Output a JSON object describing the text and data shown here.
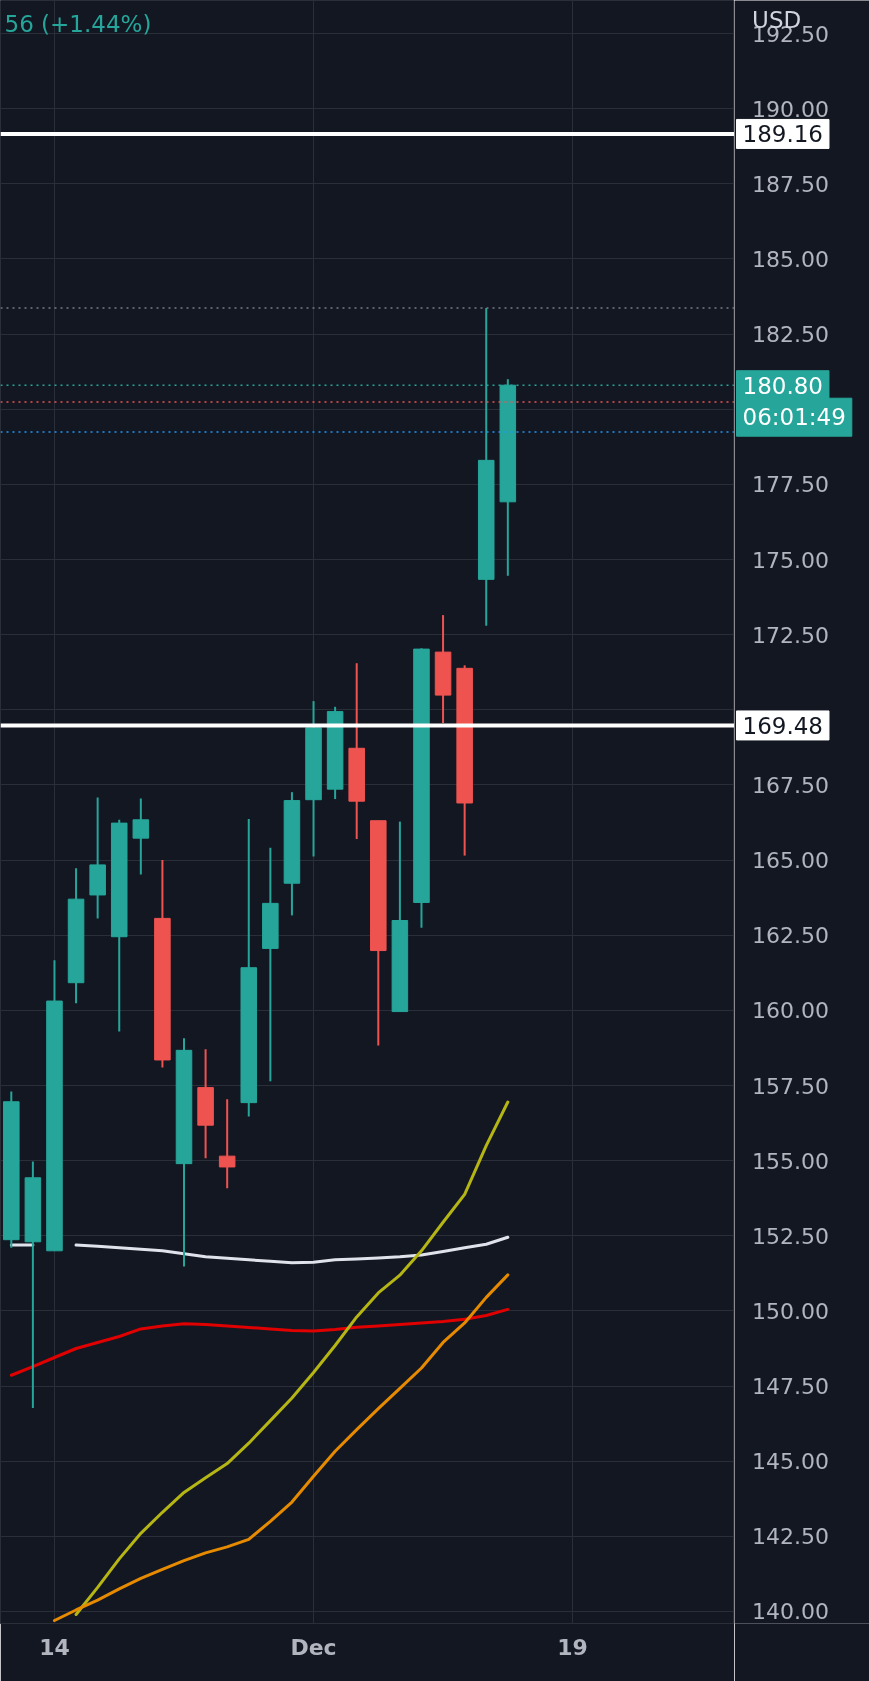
{
  "chart_data": {
    "type": "candlestick",
    "categories": [
      null,
      null,
      "14",
      null,
      null,
      null,
      null,
      null,
      null,
      null,
      null,
      null,
      null,
      null,
      "Dec",
      null,
      null,
      null,
      null,
      null,
      null,
      null,
      null,
      null,
      null,
      null,
      "19",
      null,
      null,
      null,
      null,
      null,
      null,
      null
    ],
    "ohlc": [
      [
        152.37,
        157.3,
        152.1,
        156.96
      ],
      [
        152.3,
        154.97,
        146.77,
        154.43
      ],
      [
        152.0,
        161.67,
        152.0,
        160.31
      ],
      [
        160.92,
        164.73,
        160.24,
        163.7
      ],
      [
        163.84,
        167.08,
        163.06,
        164.84
      ],
      [
        162.45,
        166.34,
        159.3,
        166.23
      ],
      [
        165.73,
        167.05,
        164.52,
        166.34
      ],
      [
        163.06,
        165.0,
        158.1,
        158.35
      ],
      [
        154.9,
        159.07,
        151.48,
        158.67
      ],
      [
        157.43,
        158.71,
        155.08,
        156.18
      ],
      [
        155.15,
        157.04,
        154.08,
        154.79
      ],
      [
        156.93,
        166.37,
        156.47,
        161.42
      ],
      [
        162.06,
        165.41,
        157.64,
        163.56
      ],
      [
        164.23,
        167.26,
        163.16,
        166.98
      ],
      [
        167.01,
        170.29,
        165.12,
        169.4
      ],
      [
        167.36,
        170.1,
        167.03,
        169.94
      ],
      [
        168.72,
        171.55,
        165.7,
        166.96
      ],
      [
        166.31,
        166.31,
        158.83,
        161.99
      ],
      [
        159.96,
        166.28,
        159.96,
        162.99
      ],
      [
        163.59,
        172.05,
        162.75,
        172.02
      ],
      [
        171.92,
        173.15,
        169.56,
        170.49
      ],
      [
        171.38,
        171.48,
        165.15,
        166.9
      ],
      [
        174.34,
        183.37,
        172.8,
        178.3
      ],
      [
        176.92,
        181.0,
        174.46,
        180.8
      ],
      null,
      null,
      null,
      null,
      null,
      null,
      null,
      null,
      null,
      null
    ],
    "colors": [
      "#26a69a",
      "#26a69a",
      "#26a69a",
      "#26a69a",
      "#26a69a",
      "#26a69a",
      "#26a69a",
      "#ef5350",
      "#26a69a",
      "#ef5350",
      "#ef5350",
      "#26a69a",
      "#26a69a",
      "#26a69a",
      "#26a69a",
      "#26a69a",
      "#ef5350",
      "#ef5350",
      "#26a69a",
      "#26a69a",
      "#ef5350",
      "#ef5350",
      "#26a69a",
      "#26a69a",
      null,
      null,
      null,
      null,
      null,
      null,
      null,
      null,
      null,
      null
    ],
    "series": [
      {
        "type": "line",
        "color": "#e0e3eb",
        "values": [
          152.19,
          152.19,
          null,
          152.19,
          152.15,
          152.1,
          152.05,
          152.0,
          151.9,
          151.8,
          151.75,
          151.7,
          151.65,
          151.6,
          151.62,
          151.7,
          151.73,
          151.76,
          151.8,
          151.86,
          151.98,
          152.1,
          152.22,
          152.45,
          null,
          null,
          null,
          null,
          null,
          null,
          null,
          null,
          null,
          null
        ]
      },
      {
        "type": "line",
        "color": "#e00000",
        "values": [
          147.86,
          148.15,
          148.45,
          148.75,
          148.95,
          149.15,
          149.4,
          149.5,
          149.57,
          149.55,
          149.5,
          149.45,
          149.4,
          149.35,
          149.33,
          149.38,
          149.46,
          149.5,
          149.55,
          149.6,
          149.65,
          149.72,
          149.85,
          150.05,
          null,
          null,
          null,
          null,
          null,
          null,
          null,
          null,
          null,
          null
        ]
      },
      {
        "type": "line",
        "color": "#b5b514",
        "values": [
          null,
          null,
          null,
          139.9,
          140.8,
          141.75,
          142.6,
          143.3,
          143.96,
          144.45,
          144.92,
          145.6,
          146.35,
          147.1,
          147.95,
          148.85,
          149.8,
          150.6,
          151.19,
          152.0,
          152.95,
          153.88,
          155.5,
          156.95,
          null,
          null,
          null,
          null,
          null,
          null,
          null,
          null,
          null,
          null
        ]
      },
      {
        "type": "line",
        "color": "#e68a00",
        "values": [
          null,
          null,
          139.7,
          140.05,
          140.38,
          140.75,
          141.1,
          141.4,
          141.69,
          141.95,
          142.15,
          142.4,
          143.0,
          143.64,
          144.5,
          145.33,
          146.05,
          146.75,
          147.42,
          148.1,
          148.95,
          149.6,
          150.45,
          151.2,
          null,
          null,
          null,
          null,
          null,
          null,
          null,
          null,
          null,
          null
        ]
      }
    ],
    "ylim": [
      139.6,
      193.6
    ],
    "yticks": [
      {
        "value": 140,
        "label": "140.00"
      },
      {
        "value": 142.5,
        "label": "142.50"
      },
      {
        "value": 145,
        "label": "145.00"
      },
      {
        "value": 147.5,
        "label": "147.50"
      },
      {
        "value": 150,
        "label": "150.00"
      },
      {
        "value": 152.5,
        "label": "152.50"
      },
      {
        "value": 155,
        "label": "155.00"
      },
      {
        "value": 157.5,
        "label": "157.50"
      },
      {
        "value": 160,
        "label": "160.00"
      },
      {
        "value": 162.5,
        "label": "162.50"
      },
      {
        "value": 165,
        "label": "165.00"
      },
      {
        "value": 167.5,
        "label": "167.50"
      },
      {
        "value": 170,
        "label": null
      },
      {
        "value": 172.5,
        "label": "172.50"
      },
      {
        "value": 175,
        "label": "175.00"
      },
      {
        "value": 177.5,
        "label": "177.50"
      },
      {
        "value": 180,
        "label": null
      },
      {
        "value": 182.5,
        "label": "182.50"
      },
      {
        "value": 185,
        "label": "185.00"
      },
      {
        "value": 187.5,
        "label": "187.50"
      },
      {
        "value": 190,
        "label": "190.00"
      },
      {
        "value": 192.5,
        "label": "192.50"
      }
    ],
    "ref_lines": [
      {
        "axis": "y",
        "value": 189.16,
        "label": "189.16",
        "color": "#ffffff",
        "line_style": "solid"
      },
      {
        "axis": "y",
        "value": 169.48,
        "label": "169.48",
        "color": "#ffffff",
        "line_style": "solid"
      },
      {
        "axis": "y",
        "value": 183.37,
        "color": "#787b86",
        "line_style": "dotted"
      },
      {
        "axis": "y",
        "value": 180.8,
        "label": "180.80",
        "color": "#26a69a",
        "line_style": "dotted"
      },
      {
        "axis": "y",
        "value": 180.24,
        "color": "#ef5350",
        "line_style": "dotted"
      },
      {
        "axis": "y",
        "value": 179.24,
        "color": "#2196f3",
        "line_style": "dotted"
      }
    ],
    "annotations": [
      "56 (+1.44%)",
      "USD",
      "06:01:49"
    ],
    "grid": true
  }
}
